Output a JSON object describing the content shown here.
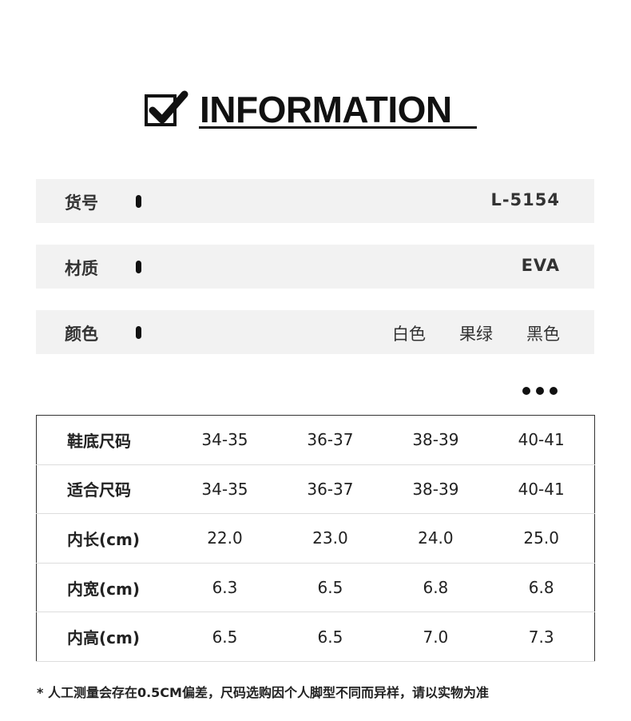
{
  "header": {
    "title": "INFORMATION",
    "icon": "checkbox-checked-icon"
  },
  "info": [
    {
      "label": "货号",
      "value": "L-5154"
    },
    {
      "label": "材质",
      "value": "EVA"
    },
    {
      "label": "颜色",
      "colors": [
        "白色",
        "果绿",
        "黑色"
      ]
    }
  ],
  "more_icon": "ellipsis-icon",
  "table": {
    "rows": [
      {
        "label": "鞋底尺码",
        "values": [
          "34-35",
          "36-37",
          "38-39",
          "40-41"
        ]
      },
      {
        "label": "适合尺码",
        "values": [
          "34-35",
          "36-37",
          "38-39",
          "40-41"
        ]
      },
      {
        "label": "内长(cm)",
        "values": [
          "22.0",
          "23.0",
          "24.0",
          "25.0"
        ]
      },
      {
        "label": "内宽(cm)",
        "values": [
          "6.3",
          "6.5",
          "6.8",
          "6.8"
        ]
      },
      {
        "label": "内高(cm)",
        "values": [
          "6.5",
          "6.5",
          "7.0",
          "7.3"
        ]
      }
    ]
  },
  "note": "* 人工测量会存在0.5CM偏差，尺码选购因个人脚型不同而异样，请以实物为准"
}
